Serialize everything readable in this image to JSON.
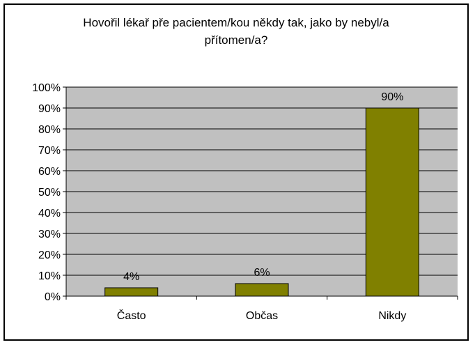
{
  "chart_data": {
    "type": "bar",
    "title_line1": "Hovořil lékař pře pacientem/kou někdy tak, jako by nebyl/a",
    "title_line2": "přítomen/a?",
    "categories": [
      "Často",
      "Občas",
      "Nikdy"
    ],
    "values": [
      4,
      6,
      90
    ],
    "value_labels": [
      "4%",
      "6%",
      "90%"
    ],
    "yticks": [
      "0%",
      "10%",
      "20%",
      "30%",
      "40%",
      "50%",
      "60%",
      "70%",
      "80%",
      "90%",
      "100%"
    ],
    "ylim": [
      0,
      100
    ],
    "grid": true,
    "colors": {
      "bar_fill": "#808000",
      "plot_bg": "#c0c0c0",
      "grid": "#000000"
    }
  }
}
